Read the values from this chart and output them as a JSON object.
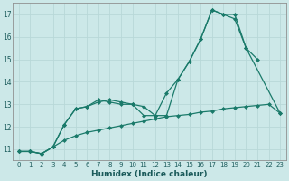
{
  "xlabel": "Humidex (Indice chaleur)",
  "background_color": "#cce8e8",
  "grid_color": "#b8d8d8",
  "line_color": "#1a7a6a",
  "xlim": [
    -0.5,
    23.5
  ],
  "ylim": [
    10.5,
    17.5
  ],
  "xticks": [
    0,
    1,
    2,
    3,
    4,
    5,
    6,
    7,
    8,
    9,
    10,
    11,
    12,
    13,
    14,
    15,
    16,
    17,
    18,
    19,
    20,
    21,
    22,
    23
  ],
  "yticks": [
    11,
    12,
    13,
    14,
    15,
    16,
    17
  ],
  "series": [
    {
      "x": [
        0,
        1,
        2,
        3,
        4,
        5,
        6,
        7,
        8,
        9,
        10,
        11,
        12,
        13,
        14,
        15,
        16,
        17,
        18,
        19,
        20,
        23
      ],
      "y": [
        10.9,
        10.9,
        10.8,
        11.1,
        12.1,
        12.8,
        12.9,
        13.2,
        13.1,
        13.0,
        13.0,
        12.5,
        12.5,
        13.5,
        14.1,
        14.9,
        15.9,
        17.2,
        17.0,
        16.8,
        15.5,
        12.6
      ]
    },
    {
      "x": [
        0,
        1,
        2,
        3,
        4,
        5,
        6,
        7,
        8,
        9,
        10,
        11,
        12,
        13,
        14,
        15,
        16,
        17,
        18,
        19,
        20,
        21
      ],
      "y": [
        10.9,
        10.9,
        10.8,
        11.1,
        12.1,
        12.8,
        12.9,
        13.1,
        13.2,
        13.1,
        13.0,
        12.9,
        12.5,
        12.5,
        14.1,
        14.9,
        15.9,
        17.2,
        17.0,
        17.0,
        15.5,
        15.0
      ]
    },
    {
      "x": [
        0,
        1,
        2,
        3,
        4,
        5,
        6,
        7,
        8,
        9,
        10,
        11,
        12,
        13,
        14,
        15,
        16,
        17,
        18,
        19,
        20,
        21,
        22,
        23
      ],
      "y": [
        10.9,
        10.9,
        10.8,
        11.1,
        11.4,
        11.6,
        11.75,
        11.85,
        11.95,
        12.05,
        12.15,
        12.25,
        12.35,
        12.45,
        12.5,
        12.55,
        12.65,
        12.7,
        12.8,
        12.85,
        12.9,
        12.95,
        13.0,
        12.6
      ]
    }
  ]
}
